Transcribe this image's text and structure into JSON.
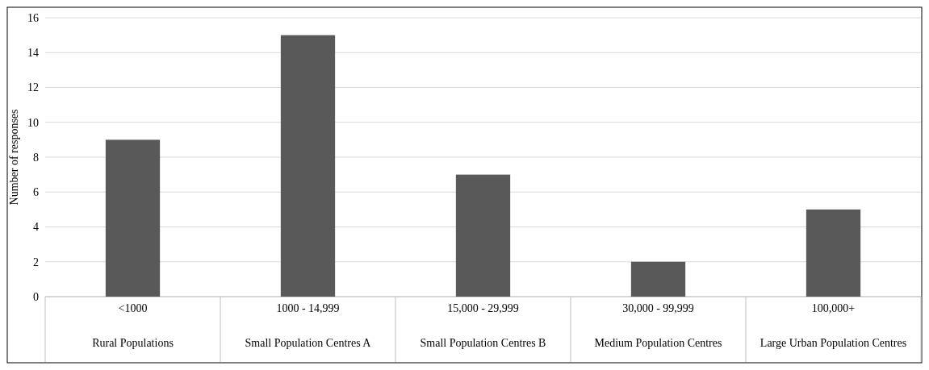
{
  "chart_data": {
    "type": "bar",
    "ylabel": "Number of responses",
    "categories": [
      "<1000\nRural Populations",
      "1000 - 14,999\nSmall Population Centres A",
      "15,000 - 29,999\nSmall Population Centres B",
      "30,000 - 99,999\nMedium Population Centres",
      "100,000+\nLarge Urban Population Centres"
    ],
    "values": [
      9,
      15,
      7,
      2,
      5
    ],
    "color": "#595959",
    "ylim": [
      0,
      16
    ],
    "yticks": [
      0,
      2,
      4,
      6,
      8,
      10,
      12,
      14,
      16
    ],
    "grid": "y"
  }
}
